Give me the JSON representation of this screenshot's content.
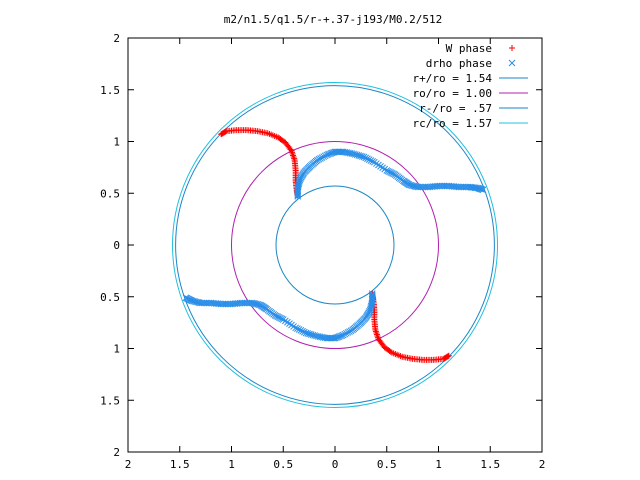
{
  "chart_data": {
    "type": "scatter",
    "title": "m2/n1.5/q1.5/r-+.37-j193/M0.2/512",
    "xlabel": "",
    "ylabel": "",
    "xlim": [
      -2,
      2
    ],
    "ylim": [
      -2,
      2
    ],
    "x_ticks": [
      -2,
      -1.5,
      -1,
      -0.5,
      0,
      0.5,
      1,
      1.5,
      2
    ],
    "y_ticks": [
      -2,
      -1.5,
      -1,
      -0.5,
      0,
      0.5,
      1,
      1.5,
      2
    ],
    "x_tick_labels": [
      "2",
      "1.5",
      "1",
      "0.5",
      "0",
      "0.5",
      "1",
      "1.5",
      "2"
    ],
    "y_tick_labels": [
      "2",
      "1.5",
      "1",
      "0.5",
      "0",
      "0.5",
      "1",
      "1.5",
      "2"
    ],
    "grid": false,
    "legend_position": "top-right",
    "legend": [
      {
        "label": "W phase",
        "kind": "points",
        "marker": "+",
        "color": "#ff0000"
      },
      {
        "label": "drho phase",
        "kind": "points",
        "marker": "x",
        "color": "#2a8ee8"
      },
      {
        "label": "r+/ro = 1.54",
        "kind": "circle",
        "radius": 1.54,
        "color": "#1a86c8"
      },
      {
        "label": "ro/ro = 1.00",
        "kind": "circle",
        "radius": 1.0,
        "color": "#b020b0"
      },
      {
        "label": "r-/ro = .57",
        "kind": "circle",
        "radius": 0.57,
        "color": "#1a86c8"
      },
      {
        "label": "rc/ro = 1.57",
        "kind": "circle",
        "radius": 1.57,
        "color": "#20c0e0"
      }
    ],
    "series": [
      {
        "name": "W phase",
        "color": "#ff0000",
        "marker": "+",
        "points": [
          [
            -1.1,
            1.07
          ],
          [
            -1.05,
            1.1
          ],
          [
            -0.95,
            1.11
          ],
          [
            -0.85,
            1.11
          ],
          [
            -0.75,
            1.1
          ],
          [
            -0.65,
            1.08
          ],
          [
            -0.55,
            1.04
          ],
          [
            -0.48,
            0.99
          ],
          [
            -0.42,
            0.91
          ],
          [
            -0.39,
            0.82
          ],
          [
            -0.38,
            0.72
          ],
          [
            -0.38,
            0.62
          ],
          [
            -0.37,
            0.53
          ],
          [
            -0.36,
            0.47
          ],
          [
            1.1,
            -1.07
          ],
          [
            1.05,
            -1.1
          ],
          [
            0.95,
            -1.11
          ],
          [
            0.85,
            -1.11
          ],
          [
            0.75,
            -1.1
          ],
          [
            0.65,
            -1.08
          ],
          [
            0.55,
            -1.04
          ],
          [
            0.48,
            -0.99
          ],
          [
            0.42,
            -0.91
          ],
          [
            0.39,
            -0.82
          ],
          [
            0.38,
            -0.72
          ],
          [
            0.38,
            -0.62
          ],
          [
            0.37,
            -0.53
          ],
          [
            0.36,
            -0.47
          ]
        ]
      },
      {
        "name": "drho phase",
        "color": "#2a8ee8",
        "marker": "x",
        "points": [
          [
            -0.36,
            0.47
          ],
          [
            -0.36,
            0.55
          ],
          [
            -0.34,
            0.63
          ],
          [
            -0.3,
            0.7
          ],
          [
            -0.24,
            0.76
          ],
          [
            -0.17,
            0.82
          ],
          [
            -0.08,
            0.87
          ],
          [
            0.0,
            0.9
          ],
          [
            0.08,
            0.9
          ],
          [
            0.18,
            0.88
          ],
          [
            0.28,
            0.85
          ],
          [
            0.38,
            0.8
          ],
          [
            0.5,
            0.72
          ],
          [
            0.58,
            0.68
          ],
          [
            0.66,
            0.62
          ],
          [
            0.72,
            0.58
          ],
          [
            0.8,
            0.56
          ],
          [
            0.9,
            0.56
          ],
          [
            1.0,
            0.57
          ],
          [
            1.1,
            0.57
          ],
          [
            1.2,
            0.56
          ],
          [
            1.3,
            0.56
          ],
          [
            1.38,
            0.55
          ],
          [
            1.44,
            0.53
          ],
          [
            0.36,
            -0.47
          ],
          [
            0.36,
            -0.55
          ],
          [
            0.34,
            -0.63
          ],
          [
            0.3,
            -0.7
          ],
          [
            0.24,
            -0.76
          ],
          [
            0.17,
            -0.82
          ],
          [
            0.08,
            -0.87
          ],
          [
            0.0,
            -0.9
          ],
          [
            -0.08,
            -0.9
          ],
          [
            -0.18,
            -0.88
          ],
          [
            -0.28,
            -0.85
          ],
          [
            -0.38,
            -0.8
          ],
          [
            -0.5,
            -0.72
          ],
          [
            -0.58,
            -0.68
          ],
          [
            -0.66,
            -0.62
          ],
          [
            -0.72,
            -0.58
          ],
          [
            -0.8,
            -0.56
          ],
          [
            -0.9,
            -0.56
          ],
          [
            -1.0,
            -0.57
          ],
          [
            -1.1,
            -0.57
          ],
          [
            -1.2,
            -0.56
          ],
          [
            -1.3,
            -0.56
          ],
          [
            -1.38,
            -0.54
          ],
          [
            -1.44,
            -0.51
          ]
        ]
      }
    ]
  }
}
